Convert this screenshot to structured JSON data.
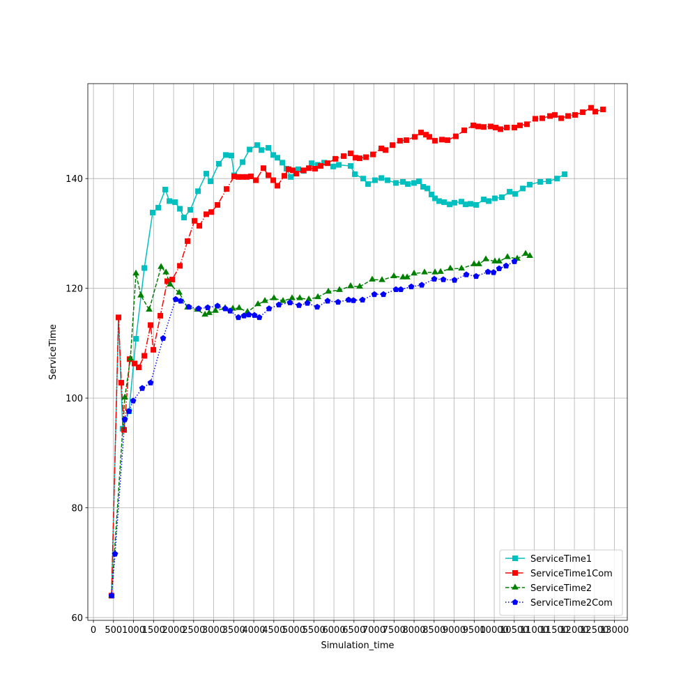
{
  "chart_data": {
    "type": "line",
    "xlabel": "Simulation_time",
    "ylabel": "ServiceTime",
    "xlim": [
      -140,
      13320
    ],
    "ylim": [
      59.5,
      157.3
    ],
    "xticks": [
      0,
      500,
      1000,
      1500,
      2000,
      2500,
      3000,
      3500,
      4000,
      4500,
      5000,
      5500,
      6000,
      6500,
      7000,
      7500,
      8000,
      8500,
      9000,
      9500,
      10000,
      10500,
      11000,
      11500,
      12000,
      12500,
      13000
    ],
    "yticks": [
      60,
      80,
      100,
      120,
      140
    ],
    "grid": true,
    "legend": "lower right",
    "series": [
      {
        "name": "ServiceTime1",
        "color": "#00bfbf",
        "linestyle": "solid",
        "marker": "square",
        "x": [
          452,
          626,
          730,
          887,
          1061,
          1270,
          1478,
          1617,
          1791,
          1896,
          2035,
          2157,
          2261,
          2417,
          2609,
          2817,
          2922,
          3130,
          3304,
          3443,
          3513,
          3722,
          3896,
          4087,
          4191,
          4365,
          4487,
          4591,
          4713,
          4817,
          4922,
          5113,
          5252,
          5443,
          5600,
          5756,
          5983,
          6122,
          6417,
          6522,
          6730,
          6852,
          7026,
          7183,
          7339,
          7548,
          7722,
          7843,
          8000,
          8122,
          8226,
          8330,
          8435,
          8522,
          8626,
          8748,
          8887,
          9009,
          9183,
          9287,
          9409,
          9548,
          9739,
          9861,
          10017,
          10191,
          10383,
          10522,
          10713,
          10887,
          11148,
          11357,
          11565,
          11757
        ],
        "values": [
          64,
          114.7,
          94.4,
          97.6,
          110.8,
          123.7,
          133.8,
          134.7,
          138.0,
          135.9,
          135.7,
          134.5,
          132.9,
          134.3,
          137.7,
          140.9,
          139.5,
          142.7,
          144.3,
          144.2,
          140.6,
          143.0,
          145.3,
          146.1,
          145.2,
          145.6,
          144.3,
          143.8,
          142.9,
          141.8,
          140.3,
          141.7,
          141.4,
          142.8,
          142.5,
          142.9,
          142.2,
          142.5,
          142.3,
          140.8,
          140.0,
          139.0,
          139.7,
          140.1,
          139.7,
          139.2,
          139.4,
          139.0,
          139.2,
          139.5,
          138.5,
          138.2,
          137.1,
          136.4,
          135.9,
          135.7,
          135.3,
          135.6,
          135.8,
          135.3,
          135.4,
          135.2,
          136.2,
          135.9,
          136.4,
          136.6,
          137.6,
          137.2,
          138.2,
          138.9,
          139.4,
          139.5,
          140.0,
          140.8
        ]
      },
      {
        "name": "ServiceTime1Com",
        "color": "#ff0000",
        "linestyle": "dashdot",
        "marker": "square",
        "x": [
          452,
          626,
          696,
          765,
          904,
          1026,
          1130,
          1270,
          1426,
          1496,
          1670,
          1843,
          1965,
          2157,
          2348,
          2522,
          2643,
          2817,
          2939,
          3096,
          3322,
          3513,
          3617,
          3722,
          3826,
          3930,
          4052,
          4243,
          4365,
          4487,
          4591,
          4765,
          4870,
          4974,
          5061,
          5235,
          5374,
          5530,
          5670,
          5843,
          6035,
          6243,
          6417,
          6539,
          6643,
          6800,
          6974,
          7183,
          7287,
          7461,
          7652,
          7809,
          8017,
          8174,
          8296,
          8383,
          8522,
          8696,
          8835,
          9043,
          9252,
          9478,
          9600,
          9739,
          9913,
          10035,
          10157,
          10313,
          10504,
          10643,
          10817,
          11026,
          11200,
          11391,
          11513,
          11670,
          11843,
          12017,
          12209,
          12417,
          12522,
          12713
        ],
        "values": [
          64,
          114.7,
          102.8,
          94.2,
          107.1,
          106.3,
          105.6,
          107.7,
          113.3,
          108.8,
          115.0,
          121.3,
          121.6,
          124.1,
          128.6,
          132.3,
          131.4,
          133.5,
          133.9,
          135.2,
          138.1,
          140.4,
          140.3,
          140.3,
          140.3,
          140.4,
          139.7,
          141.9,
          140.6,
          139.7,
          138.7,
          140.5,
          141.7,
          141.5,
          140.9,
          141.5,
          141.9,
          141.8,
          142.3,
          142.8,
          143.6,
          144.1,
          144.6,
          143.8,
          143.7,
          143.9,
          144.4,
          145.5,
          145.2,
          146.1,
          146.9,
          147.0,
          147.6,
          148.4,
          148.0,
          147.6,
          146.9,
          147.1,
          147.0,
          147.7,
          148.8,
          149.7,
          149.5,
          149.4,
          149.5,
          149.3,
          149.0,
          149.3,
          149.3,
          149.7,
          149.9,
          150.9,
          151.0,
          151.4,
          151.6,
          151.0,
          151.4,
          151.6,
          152.1,
          152.9,
          152.2,
          152.6
        ]
      },
      {
        "name": "ServiceTime2",
        "color": "#008000",
        "linestyle": "dashed",
        "marker": "triangle",
        "x": [
          452,
          783,
          922,
          1061,
          1183,
          1391,
          1687,
          1809,
          1913,
          2139,
          2348,
          2591,
          2783,
          2887,
          3043,
          3287,
          3478,
          3635,
          3843,
          4104,
          4278,
          4504,
          4730,
          4956,
          5148,
          5374,
          5600,
          5861,
          6139,
          6417,
          6643,
          6956,
          7200,
          7496,
          7722,
          7826,
          8000,
          8261,
          8522,
          8661,
          8904,
          9183,
          9496,
          9617,
          9791,
          10017,
          10122,
          10330,
          10574,
          10783,
          10887
        ],
        "values": [
          64,
          100.1,
          107.2,
          122.7,
          118.7,
          116.1,
          123.9,
          122.9,
          120.7,
          119.2,
          116.5,
          116.1,
          115.2,
          115.5,
          115.9,
          116.4,
          116.3,
          116.4,
          115.7,
          117.1,
          117.7,
          118.2,
          117.7,
          118.2,
          118.2,
          118.0,
          118.4,
          119.4,
          119.7,
          120.4,
          120.3,
          121.6,
          121.5,
          122.2,
          122.0,
          122.0,
          122.7,
          122.9,
          122.9,
          123.0,
          123.6,
          123.6,
          124.4,
          124.4,
          125.3,
          124.9,
          124.9,
          125.7,
          125.4,
          126.3,
          125.9
        ]
      },
      {
        "name": "ServiceTime2Com",
        "color": "#0000ff",
        "linestyle": "dotted",
        "marker": "pentagon",
        "x": [
          452,
          539,
          783,
          887,
          991,
          1217,
          1426,
          1739,
          2052,
          2174,
          2383,
          2626,
          2852,
          3096,
          3287,
          3409,
          3617,
          3757,
          3878,
          4017,
          4139,
          4383,
          4626,
          4904,
          5130,
          5339,
          5583,
          5843,
          6104,
          6365,
          6487,
          6713,
          7009,
          7235,
          7548,
          7670,
          7930,
          8191,
          8504,
          8730,
          9009,
          9304,
          9548,
          9843,
          9983,
          10122,
          10296,
          10504
        ],
        "values": [
          64,
          71.6,
          96.1,
          97.6,
          99.5,
          101.8,
          102.8,
          110.9,
          118.0,
          117.7,
          116.6,
          116.3,
          116.5,
          116.8,
          116.3,
          115.9,
          114.7,
          115.0,
          115.2,
          115.1,
          114.7,
          116.3,
          117.0,
          117.4,
          116.9,
          117.3,
          116.6,
          117.7,
          117.5,
          117.9,
          117.8,
          117.9,
          118.9,
          118.9,
          119.8,
          119.8,
          120.3,
          120.6,
          121.7,
          121.6,
          121.5,
          122.5,
          122.2,
          123.0,
          122.9,
          123.6,
          124.1,
          124.9
        ]
      }
    ]
  }
}
